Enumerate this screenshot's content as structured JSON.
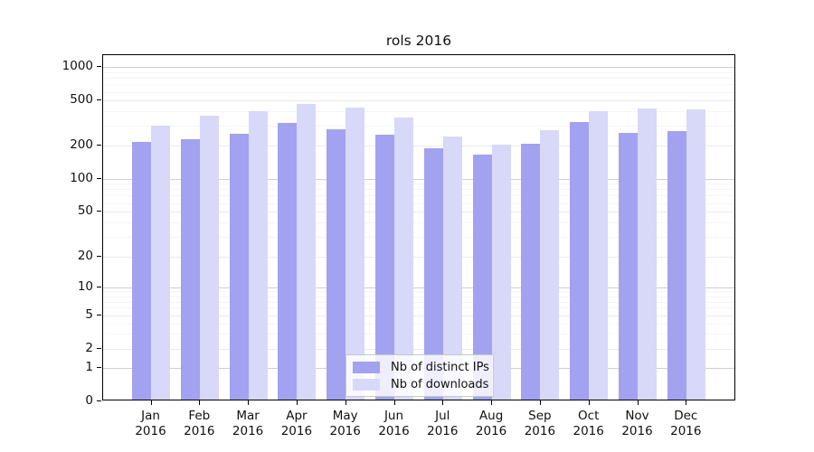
{
  "chart_data": {
    "type": "bar",
    "title": "rols 2016",
    "xlabel": "",
    "ylabel": "",
    "y_scale": "symlog",
    "ylim": [
      0,
      1000
    ],
    "grid": true,
    "legend_position": "bottom-center",
    "y_ticks": [
      0,
      1,
      2,
      5,
      10,
      20,
      50,
      100,
      200,
      500,
      1000
    ],
    "categories": [
      "Jan",
      "Feb",
      "Mar",
      "Apr",
      "May",
      "Jun",
      "Jul",
      "Aug",
      "Sep",
      "Oct",
      "Nov",
      "Dec"
    ],
    "category_year": "2016",
    "series": [
      {
        "name": "Nb of distinct IPs",
        "color": "#a2a2f0",
        "values": [
          205,
          218,
          246,
          304,
          266,
          241,
          180,
          158,
          197,
          310,
          248,
          257
        ]
      },
      {
        "name": "Nb of downloads",
        "color": "#d8d8f8",
        "values": [
          289,
          352,
          392,
          448,
          415,
          338,
          232,
          194,
          261,
          392,
          412,
          402
        ]
      }
    ]
  }
}
